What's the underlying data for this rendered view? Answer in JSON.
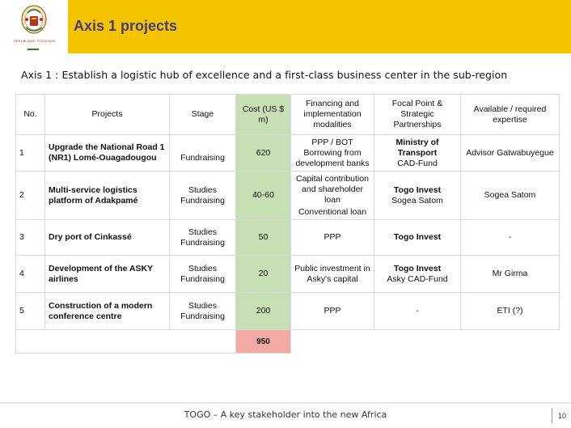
{
  "header": {
    "title": "Axis 1 projects",
    "emblem_caption": "RÉPUBLIQUE TOGOLAISE"
  },
  "subtitle": "Axis 1 : Establish a logistic hub of excellence and a first-class business center in the sub-region",
  "table": {
    "headers": {
      "no": "No.",
      "projects": "Projects",
      "stage": "Stage",
      "cost": "Cost (US $ m)",
      "financing": "Financing and implementation modalities",
      "focal": "Focal Point & Strategic Partnerships",
      "expertise": "Available / required expertise"
    },
    "rows": [
      {
        "no": "1",
        "project": "Upgrade the National Road 1 (NR1) Lomé-Ouagadougou",
        "stage": "Fundraising",
        "cost": "620",
        "financing": "PPP / BOT Borrowing from development banks",
        "focal_bold": "Ministry of Transport",
        "focal_rest": "CAD-Fund",
        "expertise": "Advisor Gatwabuyegue"
      },
      {
        "no": "2",
        "project": "Multi-service logistics platform of Adakpamé",
        "stage": "Studies Fundraising",
        "cost": "40-60",
        "financing": "Capital contribution and shareholder loan",
        "financing_extra": "Conventional loan",
        "focal_bold": "Togo Invest",
        "focal_rest": "Sogea Satom",
        "expertise": "Sogea Satom"
      },
      {
        "no": "3",
        "project": "Dry port of Cinkassé",
        "stage": "Studies Fundraising",
        "cost": "50",
        "financing": "PPP",
        "focal_bold": "Togo Invest",
        "focal_rest": "",
        "expertise": "-"
      },
      {
        "no": "4",
        "project": "Development of the ASKY airlines",
        "stage": "Studies Fundraising",
        "cost": "20",
        "financing": "Public investment in Asky's capital",
        "focal_bold": "Togo Invest",
        "focal_rest": "Asky CAD-Fund",
        "expertise": "Mr Girma"
      },
      {
        "no": "5",
        "project": "Construction of a modern conference centre",
        "stage": "Studies Fundraising",
        "cost": "200",
        "financing": "PPP",
        "focal_bold": "",
        "focal_rest": "-",
        "expertise": "ETI (?)"
      }
    ],
    "total": "950"
  },
  "footer": {
    "text": "TOGO – A key stakeholder into the new Africa",
    "page": "10"
  },
  "colors": {
    "header_bar": "#f5c400",
    "title": "#4a3a7a",
    "cost_column": "#c6dfb4",
    "total_cell": "#f4aaa4"
  }
}
